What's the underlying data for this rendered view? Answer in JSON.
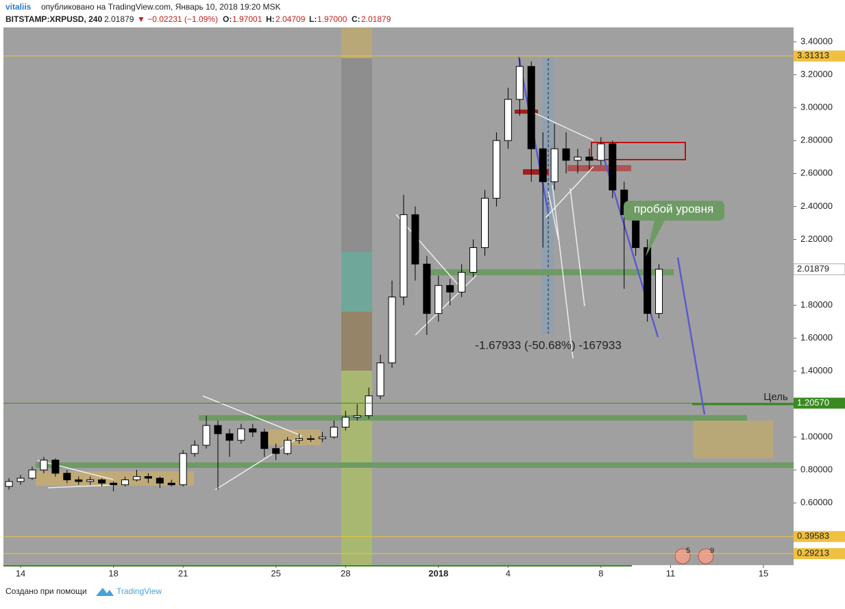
{
  "header": {
    "user": "vitaliis",
    "published": "опубликовано на TradingView.com, Январь 10, 2018 19:20 MSK",
    "symbol": "BITSTAMP:XRPUSD, 240",
    "last": "2.01879",
    "change": "▼ −0.02231 (−1.09%)",
    "o_label": "O:",
    "o": "1.97001",
    "h_label": "H:",
    "h": "2.04709",
    "l_label": "L:",
    "l": "1.97000",
    "c_label": "C:",
    "c": "2.01879"
  },
  "annotations": {
    "callout": "пробой уровня",
    "measure": "-1.67933 (-50.68%) -167933",
    "target": "Цель",
    "event_a": "5",
    "event_b": "9"
  },
  "footer": {
    "made_with": "Создано при помощи",
    "brand": "TradingView"
  },
  "chart_data": {
    "type": "candlestick",
    "x": [
      -0.5,
      0,
      0.5,
      1,
      1.5,
      2,
      2.5,
      3,
      3.5,
      4,
      4.5,
      5,
      5.5,
      6,
      6.5,
      7,
      7.5,
      8,
      8.5,
      9,
      9.5,
      10,
      10.5,
      11,
      11.5,
      12,
      12.5,
      13,
      13.5,
      14,
      14.5,
      15,
      15.5,
      16,
      16.5,
      17,
      17.5,
      18,
      18.5,
      19,
      19.5,
      20,
      20.5,
      21,
      21.5,
      22,
      22.5,
      23,
      23.5,
      24,
      24.5,
      25,
      25.5,
      26,
      26.5,
      27,
      27.5
    ],
    "open": [
      0.7,
      0.73,
      0.75,
      0.8,
      0.86,
      0.78,
      0.74,
      0.73,
      0.74,
      0.72,
      0.71,
      0.74,
      0.76,
      0.75,
      0.72,
      0.71,
      0.9,
      0.95,
      1.07,
      1.02,
      0.98,
      1.05,
      1.03,
      0.93,
      0.9,
      0.98,
      0.99,
      0.99,
      1.0,
      1.06,
      1.12,
      1.13,
      1.25,
      1.45,
      1.85,
      2.35,
      2.05,
      1.75,
      1.92,
      1.88,
      2.0,
      2.15,
      2.45,
      2.8,
      3.05,
      3.25,
      2.75,
      2.55,
      2.75,
      2.68,
      2.7,
      2.68,
      2.78,
      2.5,
      2.35,
      2.15,
      1.75
    ],
    "high": [
      0.75,
      0.77,
      0.82,
      0.88,
      0.87,
      0.8,
      0.76,
      0.76,
      0.75,
      0.73,
      0.76,
      0.8,
      0.78,
      0.76,
      0.74,
      0.92,
      0.98,
      1.13,
      1.1,
      1.05,
      1.08,
      1.08,
      1.05,
      0.96,
      1.0,
      1.02,
      1.01,
      1.03,
      1.1,
      1.16,
      1.2,
      1.3,
      1.5,
      1.95,
      2.47,
      2.4,
      2.1,
      1.98,
      1.96,
      2.05,
      2.2,
      2.5,
      2.85,
      3.12,
      3.3,
      3.28,
      2.85,
      2.9,
      2.85,
      2.75,
      2.75,
      2.82,
      2.8,
      2.55,
      2.4,
      2.2,
      2.05
    ],
    "low": [
      0.68,
      0.71,
      0.74,
      0.78,
      0.76,
      0.72,
      0.71,
      0.71,
      0.7,
      0.67,
      0.7,
      0.73,
      0.72,
      0.69,
      0.7,
      0.7,
      0.88,
      0.93,
      0.68,
      0.88,
      0.96,
      1.0,
      0.88,
      0.86,
      0.89,
      0.96,
      0.97,
      0.97,
      0.99,
      1.04,
      1.1,
      1.11,
      1.23,
      1.42,
      1.8,
      1.95,
      1.62,
      1.7,
      1.8,
      1.85,
      1.97,
      2.1,
      2.4,
      2.75,
      2.95,
      2.55,
      2.15,
      2.5,
      2.6,
      2.6,
      2.62,
      2.65,
      2.45,
      1.9,
      2.1,
      1.7,
      1.72
    ],
    "close": [
      0.73,
      0.75,
      0.8,
      0.86,
      0.78,
      0.74,
      0.73,
      0.74,
      0.72,
      0.71,
      0.74,
      0.76,
      0.75,
      0.72,
      0.71,
      0.9,
      0.95,
      1.07,
      1.02,
      0.98,
      1.05,
      1.03,
      0.93,
      0.9,
      0.98,
      0.99,
      0.99,
      1.0,
      1.06,
      1.12,
      1.13,
      1.25,
      1.45,
      1.85,
      2.35,
      2.05,
      1.75,
      1.92,
      1.88,
      2.0,
      2.15,
      2.45,
      2.8,
      3.05,
      3.25,
      2.75,
      2.55,
      2.75,
      2.68,
      2.7,
      2.68,
      2.78,
      2.5,
      2.35,
      2.15,
      1.75,
      2.01879
    ],
    "xlim": [
      -0.74,
      33.3
    ],
    "xticks": [
      {
        "value": 0,
        "label": "14"
      },
      {
        "value": 4,
        "label": "18"
      },
      {
        "value": 7,
        "label": "21"
      },
      {
        "value": 11,
        "label": "25"
      },
      {
        "value": 14,
        "label": "28"
      },
      {
        "value": 18,
        "label": "2018"
      },
      {
        "value": 21,
        "label": "4"
      },
      {
        "value": 25,
        "label": "8"
      },
      {
        "value": 28,
        "label": "11"
      },
      {
        "value": 32,
        "label": "15"
      }
    ],
    "ylim": [
      0.222,
      3.487
    ],
    "yticks": [
      {
        "value": 3.4,
        "label": "3.40000"
      },
      {
        "value": 3.2,
        "label": "3.20000"
      },
      {
        "value": 3.0,
        "label": "3.00000"
      },
      {
        "value": 2.8,
        "label": "2.80000"
      },
      {
        "value": 2.6,
        "label": "2.60000"
      },
      {
        "value": 2.4,
        "label": "2.40000"
      },
      {
        "value": 2.2,
        "label": "2.20000"
      },
      {
        "value": 1.8,
        "label": "1.80000"
      },
      {
        "value": 1.6,
        "label": "1.60000"
      },
      {
        "value": 1.4,
        "label": "1.40000"
      },
      {
        "value": 1.0,
        "label": "1.00000"
      },
      {
        "value": 0.8,
        "label": "0.80000"
      },
      {
        "value": 0.6,
        "label": "0.60000"
      }
    ],
    "price_lines": [
      {
        "value": 3.31313,
        "label": "3.31313",
        "color": "#f0c040"
      },
      {
        "value": 1.2057,
        "label": "1.20570",
        "color": "#3a8a20"
      },
      {
        "value": 0.39583,
        "label": "0.39583",
        "color": "#f0c040"
      },
      {
        "value": 0.29213,
        "label": "0.29213",
        "color": "#f0c040"
      }
    ],
    "last_price": {
      "value": 2.01879,
      "label": "2.01879"
    },
    "up_color": "#ffffff",
    "down_color": "#000000"
  }
}
